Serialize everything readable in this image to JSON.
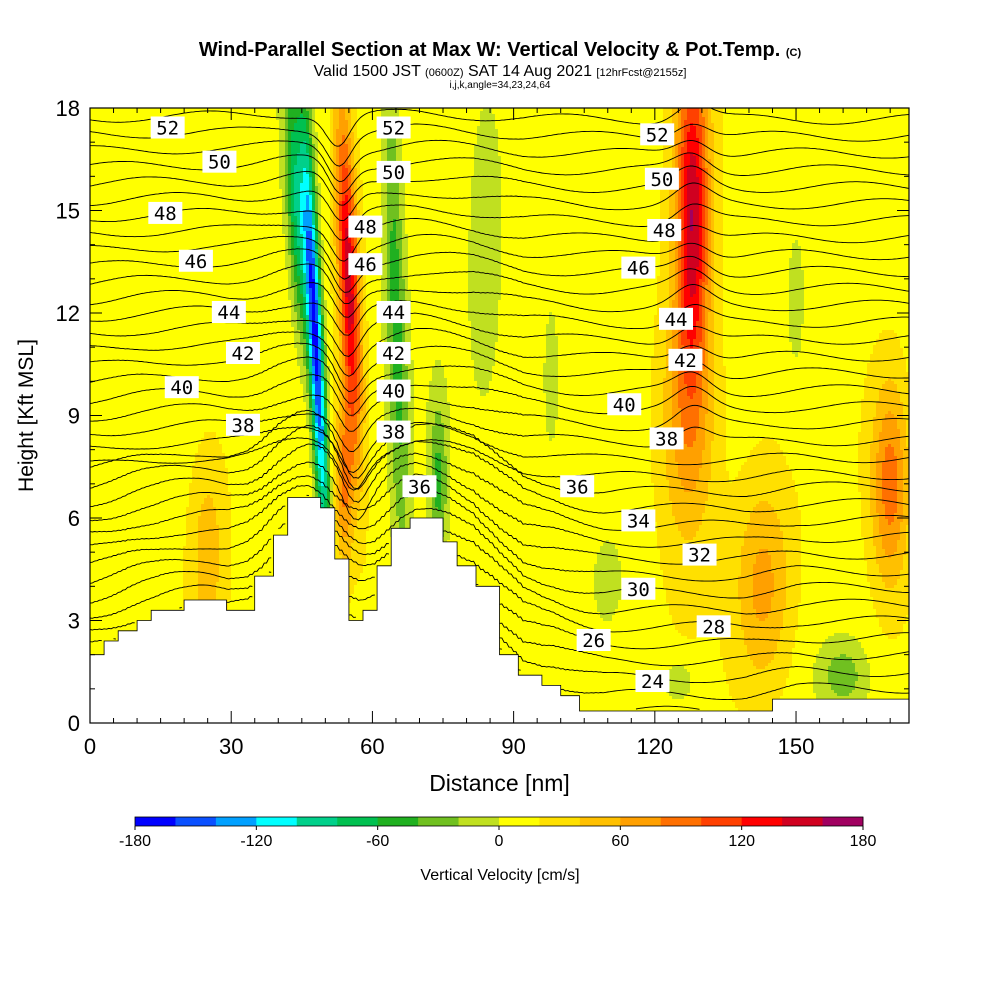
{
  "chart_data": {
    "type": "heatmap",
    "title": "Wind-Parallel Section at Max W: Vertical Velocity & Pot.Temp.",
    "title_mark": "(C)",
    "subtitle_parts": [
      "Valid 1500 JST ",
      "(0600Z)",
      " SAT 14 Aug 2021 ",
      "[12hrFcst@2155z]"
    ],
    "subtitle2": "i,j,k,angle=34,23,24,64",
    "xlabel": "Distance [nm]",
    "ylabel": "Height [Kft MSL]",
    "xlim": [
      0,
      174
    ],
    "ylim": [
      0,
      18
    ],
    "x_ticks": [
      0,
      30,
      60,
      90,
      120,
      150
    ],
    "y_ticks": [
      0,
      3,
      6,
      9,
      12,
      15,
      18
    ],
    "colorbar": {
      "label": "Vertical Velocity [cm/s]",
      "ticks": [
        -180,
        -120,
        -60,
        0,
        60,
        120,
        180
      ],
      "min": -180,
      "max": 180,
      "step": 20,
      "colors": [
        "#0000ff",
        "#0a50ff",
        "#00a0ff",
        "#00ffff",
        "#00d08a",
        "#00c050",
        "#20b020",
        "#70c020",
        "#c0e020",
        "#ffff00",
        "#ffe000",
        "#ffc000",
        "#ffa000",
        "#ff7000",
        "#ff4000",
        "#ff0000",
        "#d00020",
        "#a00060"
      ]
    },
    "velocity_features": [
      {
        "x": 48,
        "z": 11,
        "sx": 1.6,
        "sz": 6,
        "w": -180,
        "tilt": -0.35
      },
      {
        "x": 44,
        "z": 15,
        "sx": 2.2,
        "sz": 4,
        "w": -90,
        "tilt": -0.35
      },
      {
        "x": 55,
        "z": 13,
        "sx": 2.2,
        "sz": 5,
        "w": 140,
        "tilt": -0.3
      },
      {
        "x": 54,
        "z": 7,
        "sx": 2.0,
        "sz": 2.5,
        "w": 70,
        "tilt": 0
      },
      {
        "x": 65,
        "z": 12,
        "sx": 2.2,
        "sz": 8,
        "w": -60,
        "tilt": -0.2
      },
      {
        "x": 74,
        "z": 7,
        "sx": 2.0,
        "sz": 2.5,
        "w": -55,
        "tilt": 0
      },
      {
        "x": 84,
        "z": 14,
        "sx": 4,
        "sz": 5,
        "w": -25,
        "tilt": 0
      },
      {
        "x": 98,
        "z": 10,
        "sx": 2.5,
        "sz": 3,
        "w": -25,
        "tilt": 0
      },
      {
        "x": 128,
        "z": 15,
        "sx": 3.5,
        "sz": 4.5,
        "w": 140,
        "tilt": 0
      },
      {
        "x": 127,
        "z": 9,
        "sx": 6,
        "sz": 4,
        "w": 65,
        "tilt": 0
      },
      {
        "x": 143,
        "z": 4,
        "sx": 6,
        "sz": 3,
        "w": 55,
        "tilt": 0
      },
      {
        "x": 170,
        "z": 7,
        "sx": 4,
        "sz": 3,
        "w": 80,
        "tilt": 0
      },
      {
        "x": 25,
        "z": 5,
        "sx": 4,
        "sz": 3,
        "w": 40,
        "tilt": 0
      },
      {
        "x": 110,
        "z": 4.2,
        "sx": 3,
        "sz": 1.2,
        "w": -30,
        "tilt": 0
      },
      {
        "x": 125,
        "z": 1.2,
        "sx": 4,
        "sz": 0.7,
        "w": -30,
        "tilt": 0
      },
      {
        "x": 160,
        "z": 1.4,
        "sx": 5,
        "sz": 1,
        "w": -40,
        "tilt": 0
      },
      {
        "x": 150,
        "z": 12,
        "sx": 3,
        "sz": 3,
        "w": -20,
        "tilt": 0
      }
    ],
    "terrain_steps": [
      [
        0,
        2.0
      ],
      [
        3,
        2.4
      ],
      [
        6,
        2.7
      ],
      [
        10,
        3.0
      ],
      [
        13,
        3.3
      ],
      [
        20,
        3.6
      ],
      [
        29,
        3.3
      ],
      [
        35,
        4.3
      ],
      [
        39,
        5.5
      ],
      [
        42,
        6.6
      ],
      [
        49,
        6.3
      ],
      [
        52,
        4.8
      ],
      [
        55,
        3.0
      ],
      [
        58,
        3.3
      ],
      [
        61,
        4.6
      ],
      [
        64,
        5.7
      ],
      [
        68,
        6.0
      ],
      [
        75,
        5.3
      ],
      [
        78,
        4.6
      ],
      [
        82,
        4.0
      ],
      [
        87,
        2.0
      ],
      [
        91,
        1.4
      ],
      [
        96,
        1.1
      ],
      [
        100,
        0.8
      ],
      [
        104,
        0.35
      ],
      [
        145,
        0.7
      ],
      [
        174,
        0.7
      ]
    ],
    "theta_contours": [
      {
        "label": "52",
        "label_x": 16.5,
        "label_z": 17.4
      },
      {
        "label": "52",
        "label_x": 64.5,
        "label_z": 17.4
      },
      {
        "label": "52",
        "label_x": 120.5,
        "label_z": 17.2
      },
      {
        "label": "50",
        "label_x": 27.5,
        "label_z": 16.4
      },
      {
        "label": "50",
        "label_x": 64.5,
        "label_z": 16.1
      },
      {
        "label": "50",
        "label_x": 121.5,
        "label_z": 15.9
      },
      {
        "label": "48",
        "label_x": 16.0,
        "label_z": 14.9
      },
      {
        "label": "48",
        "label_x": 58.5,
        "label_z": 14.5
      },
      {
        "label": "48",
        "label_x": 122.0,
        "label_z": 14.4
      },
      {
        "label": "46",
        "label_x": 22.5,
        "label_z": 13.5
      },
      {
        "label": "46",
        "label_x": 58.5,
        "label_z": 13.4
      },
      {
        "label": "46",
        "label_x": 116.5,
        "label_z": 13.3
      },
      {
        "label": "44",
        "label_x": 29.5,
        "label_z": 12.0
      },
      {
        "label": "44",
        "label_x": 64.5,
        "label_z": 12.0
      },
      {
        "label": "44",
        "label_x": 124.5,
        "label_z": 11.8
      },
      {
        "label": "42",
        "label_x": 32.5,
        "label_z": 10.8
      },
      {
        "label": "42",
        "label_x": 64.5,
        "label_z": 10.8
      },
      {
        "label": "42",
        "label_x": 126.5,
        "label_z": 10.6
      },
      {
        "label": "40",
        "label_x": 19.5,
        "label_z": 9.8
      },
      {
        "label": "40",
        "label_x": 64.5,
        "label_z": 9.7
      },
      {
        "label": "40",
        "label_x": 113.5,
        "label_z": 9.3
      },
      {
        "label": "38",
        "label_x": 32.5,
        "label_z": 8.7
      },
      {
        "label": "38",
        "label_x": 64.5,
        "label_z": 8.5
      },
      {
        "label": "38",
        "label_x": 122.5,
        "label_z": 8.3
      },
      {
        "label": "36",
        "label_x": 70.0,
        "label_z": 6.9
      },
      {
        "label": "36",
        "label_x": 103.5,
        "label_z": 6.9
      },
      {
        "label": "34",
        "label_x": 116.5,
        "label_z": 5.9
      },
      {
        "label": "32",
        "label_x": 129.5,
        "label_z": 4.9
      },
      {
        "label": "30",
        "label_x": 116.5,
        "label_z": 3.9
      },
      {
        "label": "28",
        "label_x": 132.5,
        "label_z": 2.8
      },
      {
        "label": "26",
        "label_x": 107.0,
        "label_z": 2.4
      },
      {
        "label": "24",
        "label_x": 119.5,
        "label_z": 1.2
      }
    ]
  }
}
